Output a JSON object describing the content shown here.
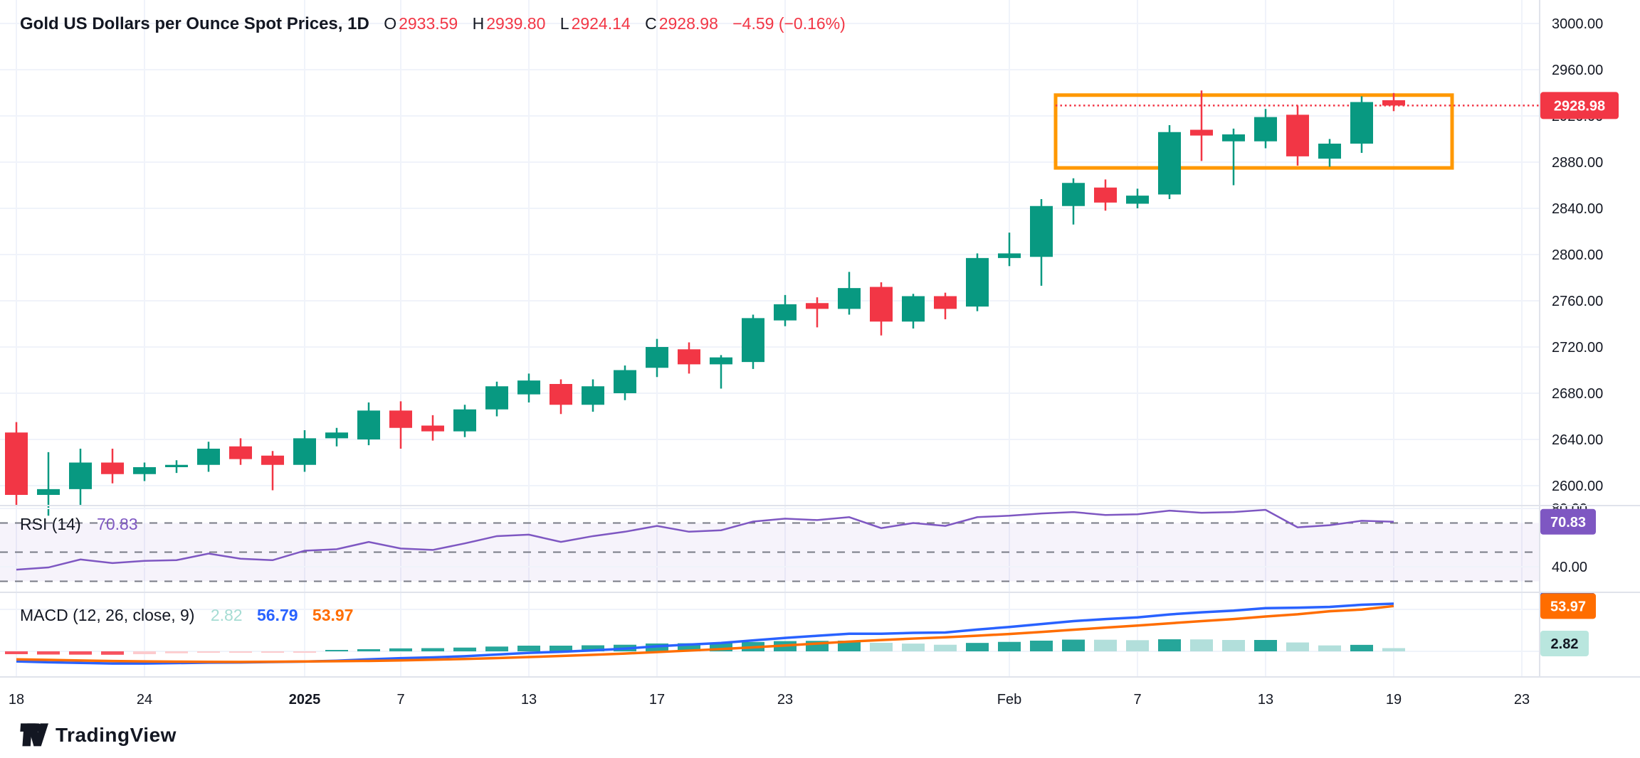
{
  "legend": {
    "symbol": "Gold US Dollars per Ounce Spot Prices, 1D",
    "open_label": "O",
    "open": "2933.59",
    "high_label": "H",
    "high": "2939.80",
    "low_label": "L",
    "low": "2924.14",
    "close_label": "C",
    "close": "2928.98",
    "change": "−4.59 (−0.16%)"
  },
  "rsi_legend": {
    "name": "RSI (14)",
    "value": "70.83"
  },
  "macd_legend": {
    "name": "MACD (12, 26, close, 9)",
    "hist": "2.82",
    "macd": "56.79",
    "signal": "53.97"
  },
  "axis_badges": {
    "last_price": "2928.98",
    "rsi": "70.83",
    "macd_line": "56.79",
    "macd_signal": "53.97",
    "macd_hist": "2.82"
  },
  "watermark": {
    "text": "TradingView"
  },
  "colors": {
    "up": "#089981",
    "down": "#f23645",
    "rsi_line": "#7e57c2",
    "rsi_band_fill": "rgba(126,87,194,0.07)",
    "dashed_level": "#787b86",
    "macd_line": "#2962ff",
    "signal_line": "#ff6d00",
    "hist_pos_strong": "#26a69a",
    "hist_pos_weak": "#b2dfdb",
    "hist_neg_strong": "#f7525f",
    "hist_neg_weak": "#fccbcd",
    "annotation_box": "#ff9800",
    "price_line": "#f23645",
    "grid": "#f0f3fa",
    "separator": "#e0e3eb",
    "text": "#131722",
    "badge_hist_bg": "#b9e6de"
  },
  "chart_data": {
    "type": "candlestick",
    "title": "Gold US Dollars per Ounce Spot Prices, 1D",
    "price_axis_ticks": [
      3000,
      2960,
      2920,
      2880,
      2840,
      2800,
      2760,
      2720,
      2680,
      2640,
      2600
    ],
    "rsi_axis_ticks": [
      80,
      40
    ],
    "rsi_levels": [
      70,
      50,
      30
    ],
    "time_labels": [
      {
        "label": "18",
        "idx": 0,
        "bold": false
      },
      {
        "label": "24",
        "idx": 4,
        "bold": false
      },
      {
        "label": "2025",
        "idx": 9,
        "bold": true
      },
      {
        "label": "7",
        "idx": 12,
        "bold": false
      },
      {
        "label": "13",
        "idx": 16,
        "bold": false
      },
      {
        "label": "17",
        "idx": 20,
        "bold": false
      },
      {
        "label": "23",
        "idx": 24,
        "bold": false
      },
      {
        "label": "Feb",
        "idx": 31,
        "bold": false
      },
      {
        "label": "7",
        "idx": 35,
        "bold": false
      },
      {
        "label": "13",
        "idx": 39,
        "bold": false
      },
      {
        "label": "19",
        "idx": 43,
        "bold": false
      },
      {
        "label": "23",
        "idx": 47,
        "bold": false
      }
    ],
    "dates": [
      "Dec 18",
      "Dec 19",
      "Dec 20",
      "Dec 23",
      "Dec 24",
      "Dec 26",
      "Dec 27",
      "Dec 30",
      "Dec 31",
      "Jan 2",
      "Jan 3",
      "Jan 6",
      "Jan 7",
      "Jan 8",
      "Jan 9",
      "Jan 10",
      "Jan 13",
      "Jan 14",
      "Jan 15",
      "Jan 16",
      "Jan 17",
      "Jan 20",
      "Jan 21",
      "Jan 22",
      "Jan 23",
      "Jan 24",
      "Jan 27",
      "Jan 28",
      "Jan 29",
      "Jan 30",
      "Jan 31",
      "Feb 3",
      "Feb 4",
      "Feb 5",
      "Feb 6",
      "Feb 7",
      "Feb 10",
      "Feb 11",
      "Feb 12",
      "Feb 13",
      "Feb 14",
      "Feb 17",
      "Feb 18",
      "Feb 19"
    ],
    "ohlc": [
      [
        2646,
        2655,
        2583,
        2592
      ],
      [
        2592,
        2629,
        2574,
        2597
      ],
      [
        2597,
        2632,
        2583,
        2620
      ],
      [
        2620,
        2632,
        2602,
        2610
      ],
      [
        2610,
        2620,
        2604,
        2616
      ],
      [
        2616,
        2622,
        2611,
        2618
      ],
      [
        2618,
        2638,
        2612,
        2632
      ],
      [
        2634,
        2641,
        2618,
        2623
      ],
      [
        2626,
        2630,
        2596,
        2618
      ],
      [
        2618,
        2648,
        2612,
        2641
      ],
      [
        2641,
        2650,
        2634,
        2646
      ],
      [
        2640,
        2672,
        2635,
        2665
      ],
      [
        2665,
        2673,
        2632,
        2650
      ],
      [
        2652,
        2661,
        2639,
        2647
      ],
      [
        2647,
        2670,
        2642,
        2666
      ],
      [
        2666,
        2690,
        2660,
        2686
      ],
      [
        2679,
        2697,
        2672,
        2691
      ],
      [
        2688,
        2692,
        2662,
        2670
      ],
      [
        2670,
        2692,
        2664,
        2686
      ],
      [
        2680,
        2704,
        2674,
        2700
      ],
      [
        2702,
        2727,
        2694,
        2720
      ],
      [
        2718,
        2724,
        2697,
        2705
      ],
      [
        2705,
        2713,
        2684,
        2711
      ],
      [
        2707,
        2748,
        2701,
        2745
      ],
      [
        2743,
        2765,
        2738,
        2757
      ],
      [
        2758,
        2763,
        2737,
        2753
      ],
      [
        2753,
        2785,
        2748,
        2771
      ],
      [
        2772,
        2776,
        2730,
        2742
      ],
      [
        2742,
        2766,
        2736,
        2764
      ],
      [
        2764,
        2767,
        2744,
        2753
      ],
      [
        2755,
        2801,
        2751,
        2797
      ],
      [
        2797,
        2819,
        2790,
        2801
      ],
      [
        2798,
        2848,
        2773,
        2842
      ],
      [
        2842,
        2866,
        2826,
        2862
      ],
      [
        2858,
        2865,
        2838,
        2845
      ],
      [
        2844,
        2857,
        2840,
        2851
      ],
      [
        2852,
        2912,
        2848,
        2906
      ],
      [
        2908,
        2942,
        2881,
        2903
      ],
      [
        2898,
        2909,
        2860,
        2904
      ],
      [
        2898,
        2926,
        2892,
        2919
      ],
      [
        2921,
        2929,
        2877,
        2885
      ],
      [
        2883,
        2900,
        2876,
        2896
      ],
      [
        2896,
        2937,
        2888,
        2932
      ],
      [
        2933.59,
        2939.8,
        2924.14,
        2928.98
      ]
    ],
    "rsi": [
      38,
      39.5,
      45,
      42.5,
      44,
      44.5,
      49,
      45.5,
      44.5,
      51,
      52,
      57,
      52.5,
      51.5,
      56,
      61,
      62,
      57,
      61,
      64,
      68,
      64,
      65,
      71,
      73,
      72,
      74,
      66.5,
      70,
      68,
      74,
      75,
      76.5,
      77.5,
      75.5,
      76,
      78.5,
      77,
      77.5,
      79,
      67,
      68.5,
      71.5,
      70.83
    ],
    "macd": [
      -12,
      -13,
      -13.8,
      -14.5,
      -14.5,
      -14,
      -13.5,
      -13.2,
      -12.7,
      -12.2,
      -11.2,
      -9.5,
      -8.2,
      -7.2,
      -5.8,
      -3.8,
      -1.8,
      -0.5,
      1.2,
      3.2,
      6,
      8,
      10,
      13,
      16,
      18.5,
      21,
      21,
      22,
      22.5,
      26,
      29,
      32.5,
      36,
      38.5,
      40.5,
      44,
      46.5,
      48.5,
      51.5,
      52,
      53,
      55.5,
      56.79
    ],
    "signal": [
      -9.5,
      -10.2,
      -10.9,
      -11.5,
      -12,
      -12.3,
      -12.5,
      -12.6,
      -12.4,
      -12.1,
      -11.8,
      -11.4,
      -10.8,
      -10,
      -9.1,
      -8,
      -6.8,
      -5.5,
      -4.1,
      -2.6,
      -0.9,
      0.9,
      2.7,
      4.8,
      7,
      9.3,
      11.6,
      13.5,
      15.2,
      16.7,
      18.6,
      20.7,
      23.1,
      25.7,
      28.3,
      30.7,
      33.4,
      36,
      38.5,
      41.5,
      44.2,
      47.8,
      49.8,
      53.97
    ],
    "last_price": 2928.98,
    "annotations": {
      "price_line": {
        "value": 2928.98,
        "from_date": "Feb 4",
        "style": "dotted-red"
      },
      "box": {
        "from_date": "Feb 4",
        "to_x_after_last": true,
        "price_top": 2938,
        "price_bottom": 2875
      }
    },
    "ylim_price": [
      2585,
      3020
    ],
    "grid": true,
    "legend_position": "top-left"
  }
}
